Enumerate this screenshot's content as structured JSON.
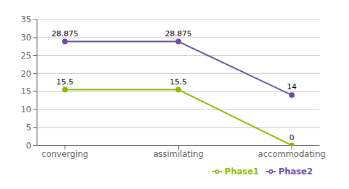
{
  "chart_data": {
    "type": "line",
    "categories": [
      "converging",
      "assimilating",
      "accommodating"
    ],
    "series": [
      {
        "name": "Phase1",
        "color": "#8fbc00",
        "values": [
          15.5,
          15.5,
          0
        ],
        "marker": "circle"
      },
      {
        "name": "Phase2",
        "color": "#6b4f9e",
        "values": [
          28.875,
          28.875,
          14
        ],
        "marker": "circle"
      }
    ],
    "ylim": [
      0,
      35
    ],
    "yticks": [
      0,
      5,
      10,
      15,
      20,
      25,
      30,
      35
    ],
    "grid": true,
    "legend": "bottom right",
    "data_labels": true
  }
}
